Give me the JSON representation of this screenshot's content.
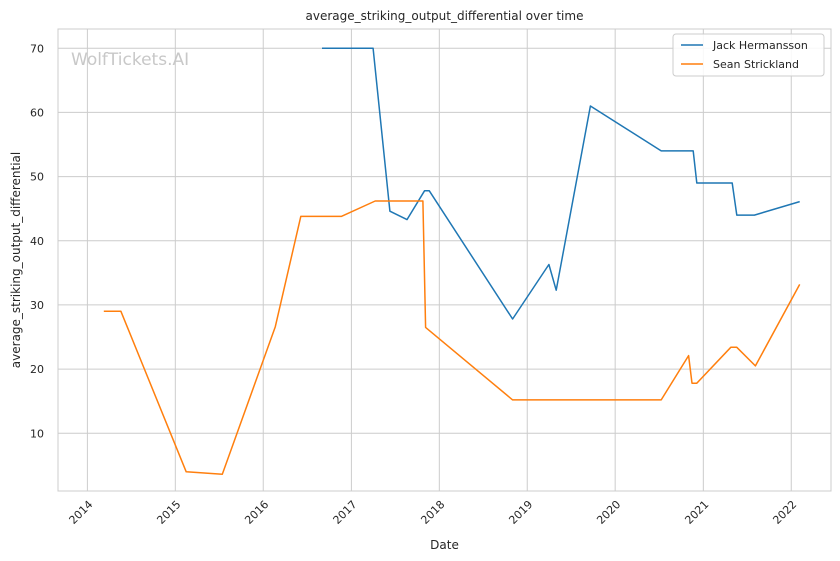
{
  "watermark": "WolfTickets.AI",
  "chart_data": {
    "type": "line",
    "title": "average_striking_output_differential over time",
    "xlabel": "Date",
    "ylabel": "average_striking_output_differential",
    "x_ticks": [
      "2014",
      "2015",
      "2016",
      "2017",
      "2018",
      "2019",
      "2020",
      "2021",
      "2022"
    ],
    "y_ticks": [
      10,
      20,
      30,
      40,
      50,
      60,
      70
    ],
    "xlim": [
      "2013-09-01",
      "2022-06-15"
    ],
    "ylim": [
      1,
      73
    ],
    "grid": true,
    "legend_position": "top-right",
    "series": [
      {
        "name": "Jack Hermansson",
        "color": "#1f77b4",
        "points": [
          [
            "2016-09-01",
            70.0
          ],
          [
            "2017-04-01",
            70.0
          ],
          [
            "2017-06-10",
            44.6
          ],
          [
            "2017-08-20",
            43.3
          ],
          [
            "2017-11-01",
            47.8
          ],
          [
            "2017-11-20",
            47.8
          ],
          [
            "2018-11-01",
            27.8
          ],
          [
            "2019-04-01",
            36.3
          ],
          [
            "2019-05-01",
            32.3
          ],
          [
            "2019-09-20",
            61.0
          ],
          [
            "2020-07-10",
            54.0
          ],
          [
            "2020-11-20",
            54.0
          ],
          [
            "2020-12-05",
            49.0
          ],
          [
            "2021-05-01",
            49.0
          ],
          [
            "2021-05-20",
            44.0
          ],
          [
            "2021-08-01",
            44.0
          ],
          [
            "2022-02-05",
            46.1
          ]
        ]
      },
      {
        "name": "Sean Strickland",
        "color": "#ff7f0e",
        "points": [
          [
            "2014-03-10",
            29.0
          ],
          [
            "2014-05-20",
            29.0
          ],
          [
            "2015-02-15",
            4.0
          ],
          [
            "2015-07-15",
            3.6
          ],
          [
            "2016-02-20",
            26.6
          ],
          [
            "2016-06-05",
            43.8
          ],
          [
            "2016-11-20",
            43.8
          ],
          [
            "2017-04-10",
            46.2
          ],
          [
            "2017-10-25",
            46.2
          ],
          [
            "2017-11-05",
            26.5
          ],
          [
            "2018-11-01",
            15.2
          ],
          [
            "2020-07-10",
            15.2
          ],
          [
            "2020-11-01",
            22.1
          ],
          [
            "2020-11-15",
            17.8
          ],
          [
            "2020-12-05",
            17.8
          ],
          [
            "2021-04-25",
            23.4
          ],
          [
            "2021-05-20",
            23.4
          ],
          [
            "2021-08-05",
            20.5
          ],
          [
            "2022-02-05",
            33.2
          ]
        ]
      }
    ]
  }
}
